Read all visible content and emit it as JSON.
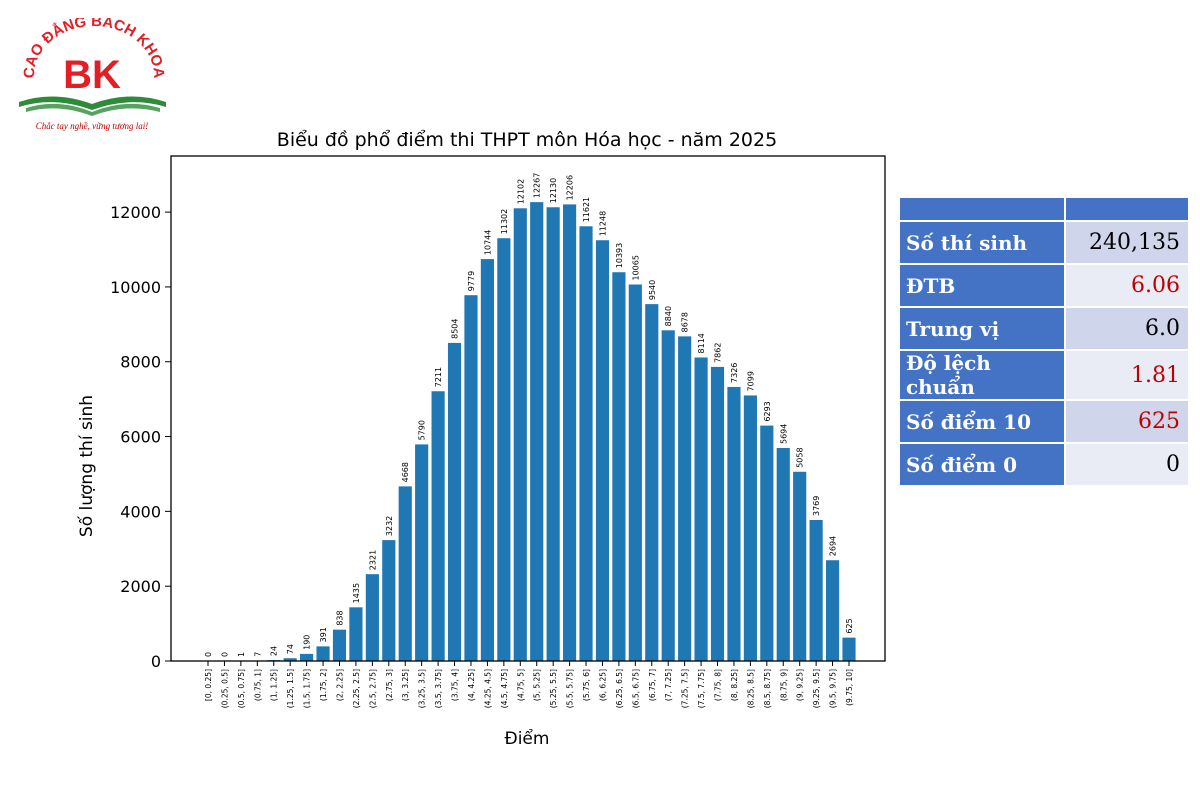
{
  "logo": {
    "arc_text": "CAO ĐẲNG BÁCH KHOA",
    "monogram": "BK",
    "slogan": "Chắc tay nghề, vững tương lai!"
  },
  "chart_data": {
    "type": "bar",
    "title": "Biểu đồ phổ điểm thi THPT môn Hóa học - năm 2025",
    "xlabel": "Điểm",
    "ylabel": "Số lượng thí sinh",
    "ylim": [
      0,
      13500
    ],
    "yticks": [
      0,
      2000,
      4000,
      6000,
      8000,
      10000,
      12000
    ],
    "categories": [
      "[0, 0.25]",
      "(0.25, 0.5]",
      "(0.5, 0.75]",
      "(0.75, 1]",
      "(1, 1.25]",
      "(1.25, 1.5]",
      "(1.5, 1.75]",
      "(1.75, 2]",
      "(2, 2.25]",
      "(2.25, 2.5]",
      "(2.5, 2.75]",
      "(2.75, 3]",
      "(3, 3.25]",
      "(3.25, 3.5]",
      "(3.5, 3.75]",
      "(3.75, 4]",
      "(4, 4.25]",
      "(4.25, 4.5]",
      "(4.5, 4.75]",
      "(4.75, 5]",
      "(5, 5.25]",
      "(5.25, 5.5]",
      "(5.5, 5.75]",
      "(5.75, 6]",
      "(6, 6.25]",
      "(6.25, 6.5]",
      "(6.5, 6.75]",
      "(6.75, 7]",
      "(7, 7.25]",
      "(7.25, 7.5]",
      "(7.5, 7.75]",
      "(7.75, 8]",
      "(8, 8.25]",
      "(8.25, 8.5]",
      "(8.5, 8.75]",
      "(8.75, 9]",
      "(9, 9.25]",
      "(9.25, 9.5]",
      "(9.5, 9.75]",
      "(9.75, 10]"
    ],
    "values": [
      0,
      0,
      1,
      7,
      24,
      74,
      190,
      391,
      838,
      1435,
      2321,
      3232,
      4668,
      5790,
      7211,
      8504,
      9779,
      10744,
      11302,
      12102,
      12267,
      12130,
      12206,
      11621,
      11248,
      10393,
      10065,
      9540,
      8840,
      8678,
      8114,
      7862,
      7326,
      7099,
      6293,
      5694,
      5058,
      3769,
      2694,
      625
    ],
    "grid": false,
    "bar_color": "#1f77b4"
  },
  "stats": {
    "rows": [
      {
        "label": "Số thí sinh",
        "value": "240,135",
        "color": "#000000"
      },
      {
        "label": "ĐTB",
        "value": "6.06",
        "color": "#c00000"
      },
      {
        "label": "Trung vị",
        "value": "6.0",
        "color": "#000000"
      },
      {
        "label": "Độ lệch chuẩn",
        "value": "1.81",
        "color": "#c00000"
      },
      {
        "label": "Số điểm 10",
        "value": "625",
        "color": "#c00000"
      },
      {
        "label": "Số điểm 0",
        "value": "0",
        "color": "#000000"
      }
    ]
  },
  "colors": {
    "brand_red": "#e31e24",
    "brand_green": "#2e8b3a",
    "table_header": "#4472c4"
  }
}
